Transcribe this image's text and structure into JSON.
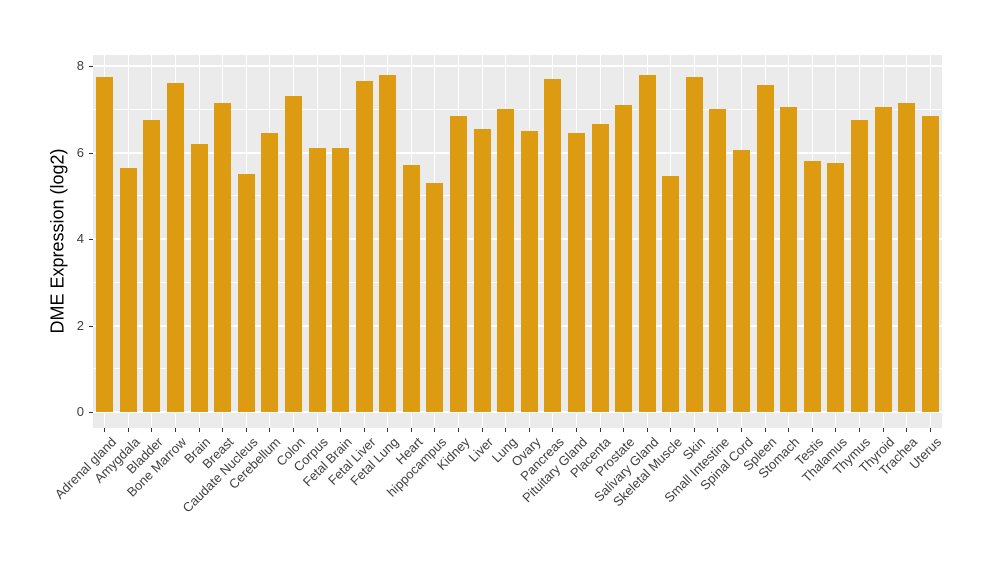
{
  "figure": {
    "background_color": "#FFFFFF",
    "panel_background_color": "#EBEBEB",
    "gridline_color": "#FFFFFF",
    "axis_text_color": "#404040",
    "axis_title_color": "#000000",
    "tick_mark_color": "#333333"
  },
  "chart_data": {
    "type": "bar",
    "title": "",
    "xlabel": "",
    "ylabel": "DME Expression (log2)",
    "bar_color": "#DD9B12",
    "grid": "on",
    "legend": "none",
    "ylim": [
      0,
      8.25
    ],
    "yticks": [
      0,
      2,
      4,
      6,
      8
    ],
    "yticks_minor": [
      1,
      3,
      5,
      7
    ],
    "x_label_angle_deg": 45,
    "categories": [
      "Adrenal gland",
      "Amygdala",
      "Bladder",
      "Bone Marrow",
      "Brain",
      "Breast",
      "Caudate Nucleus",
      "Cerebellum",
      "Colon",
      "Corpus",
      "Fetal Brain",
      "Fetal Liver",
      "Fetal Lung",
      "Heart",
      "hippocampus",
      "Kidney",
      "Liver",
      "Lung",
      "Ovary",
      "Pancreas",
      "Pituitary Gland",
      "Placenta",
      "Prostate",
      "Salivary Gland",
      "Skeletal Muscle",
      "Skin",
      "Small Intestine",
      "Spinal Cord",
      "Spleen",
      "Stomach",
      "Testis",
      "Thalamus",
      "Thymus",
      "Thyroid",
      "Trachea",
      "Uterus"
    ],
    "values": [
      7.75,
      5.65,
      6.75,
      7.6,
      6.2,
      7.15,
      5.5,
      6.45,
      7.3,
      6.1,
      6.1,
      7.65,
      7.8,
      5.7,
      5.3,
      6.85,
      6.55,
      7.0,
      6.5,
      7.7,
      6.45,
      6.65,
      7.1,
      7.8,
      5.45,
      7.75,
      7.0,
      6.05,
      7.55,
      7.05,
      5.8,
      5.75,
      6.75,
      7.05,
      7.15,
      6.85
    ]
  }
}
